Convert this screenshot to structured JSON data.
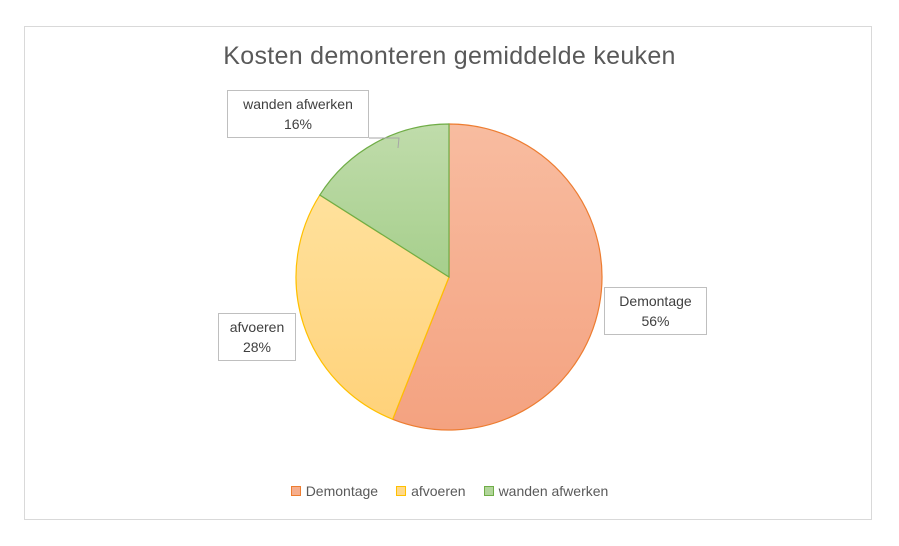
{
  "chart_data": {
    "type": "pie",
    "title": "Kosten demonteren gemiddelde keuken",
    "categories": [
      "Demontage",
      "afvoeren",
      "wanden afwerken"
    ],
    "values": [
      56,
      28,
      16
    ],
    "value_labels": [
      "56%",
      "28%",
      "16%"
    ],
    "legend_position": "bottom",
    "colors": {
      "fill": [
        "#f6ae8d",
        "#ffd98a",
        "#b1d59a"
      ],
      "stroke": [
        "#ed7d31",
        "#ffc000",
        "#70ad47"
      ]
    }
  }
}
